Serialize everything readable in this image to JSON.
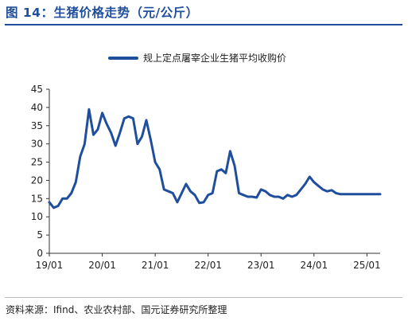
{
  "title": "图 14：生猪价格走势（元/公斤）",
  "source": "资料来源：Ifind、农业农村部、国元证券研究所整理",
  "chart_data": {
    "type": "line",
    "series": [
      {
        "name": "规上定点屠宰企业生猪平均收购价",
        "color": "#1f4e9c",
        "x": [
          "2019-01",
          "2019-02",
          "2019-03",
          "2019-04",
          "2019-05",
          "2019-06",
          "2019-07",
          "2019-08",
          "2019-09",
          "2019-10",
          "2019-11",
          "2019-12",
          "2020-01",
          "2020-02",
          "2020-03",
          "2020-04",
          "2020-05",
          "2020-06",
          "2020-07",
          "2020-08",
          "2020-09",
          "2020-10",
          "2020-11",
          "2020-12",
          "2021-01",
          "2021-02",
          "2021-03",
          "2021-04",
          "2021-05",
          "2021-06",
          "2021-07",
          "2021-08",
          "2021-09",
          "2021-10",
          "2021-11",
          "2021-12",
          "2022-01",
          "2022-02",
          "2022-03",
          "2022-04",
          "2022-05",
          "2022-06",
          "2022-07",
          "2022-08",
          "2022-09",
          "2022-10",
          "2022-11",
          "2022-12",
          "2023-01",
          "2023-02",
          "2023-03",
          "2023-04",
          "2023-05",
          "2023-06",
          "2023-07",
          "2023-08",
          "2023-09",
          "2023-10",
          "2023-11",
          "2023-12",
          "2024-01",
          "2024-02",
          "2024-03",
          "2024-04",
          "2024-05",
          "2024-06",
          "2024-07",
          "2024-08",
          "2024-09",
          "2024-10",
          "2024-11",
          "2024-12",
          "2025-01",
          "2025-02",
          "2025-03",
          "2025-04"
        ],
        "values": [
          14.0,
          12.5,
          13.0,
          15.0,
          15.0,
          16.5,
          19.5,
          26.5,
          30.0,
          39.5,
          32.5,
          34.0,
          38.5,
          35.5,
          33.0,
          29.5,
          33.0,
          37.0,
          37.5,
          37.0,
          30.0,
          32.0,
          36.5,
          31.0,
          25.0,
          23.0,
          17.5,
          17.0,
          16.5,
          14.0,
          16.5,
          19.0,
          17.0,
          16.0,
          13.8,
          14.0,
          16.0,
          16.5,
          22.5,
          23.0,
          22.0,
          28.0,
          24.0,
          16.5,
          16.0,
          15.5,
          15.5,
          15.3,
          17.5,
          17.0,
          16.0,
          15.5,
          15.5,
          15.0,
          16.0,
          15.5,
          16.0,
          17.5,
          19.0,
          21.0,
          19.5,
          18.5,
          17.5,
          17.0,
          17.3,
          16.5,
          16.2,
          16.2,
          16.2,
          16.2,
          16.2,
          16.2,
          16.2,
          16.2,
          16.2,
          16.2
        ]
      }
    ],
    "x_tick_labels": [
      "19/01",
      "20/01",
      "21/01",
      "22/01",
      "23/01",
      "24/01",
      "25/01"
    ],
    "y_tick_labels": [
      "0",
      "5",
      "10",
      "15",
      "20",
      "25",
      "30",
      "35",
      "40",
      "45"
    ],
    "ylim": [
      0,
      45
    ],
    "grid": false,
    "legend_position": "top-center"
  }
}
